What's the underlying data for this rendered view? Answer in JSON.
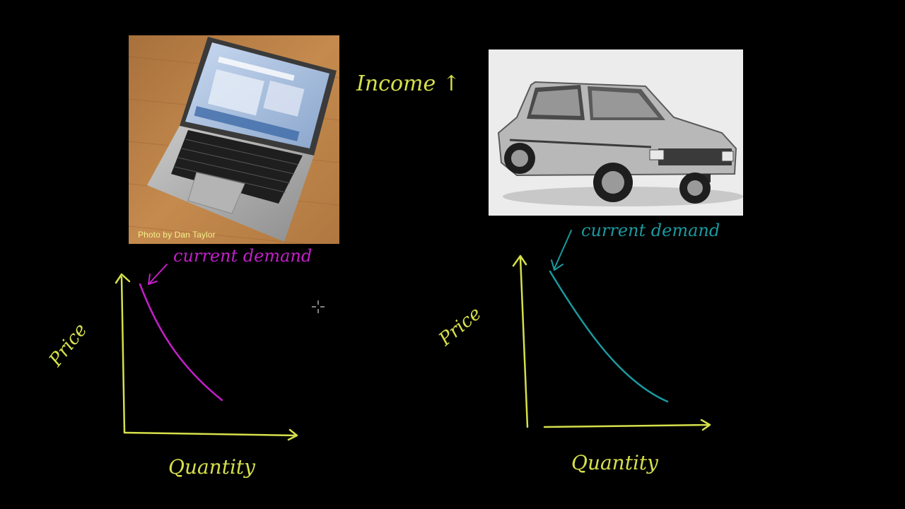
{
  "colors": {
    "background": "#000000",
    "axis_ink": "#d6e04a",
    "laptop_curve_ink": "#c21fc8",
    "car_curve_ink": "#1a9aa0"
  },
  "laptop": {
    "photo_credit": "Photo by Dan Taylor",
    "curve_label": "current demand",
    "y_axis_label": "Price",
    "x_axis_label": "Quantity"
  },
  "income_label": "Income ↑",
  "car": {
    "curve_label": "current demand",
    "y_axis_label": "Price",
    "x_axis_label": "Quantity"
  },
  "icons": {
    "cursor": "crosshair-cursor-icon"
  }
}
